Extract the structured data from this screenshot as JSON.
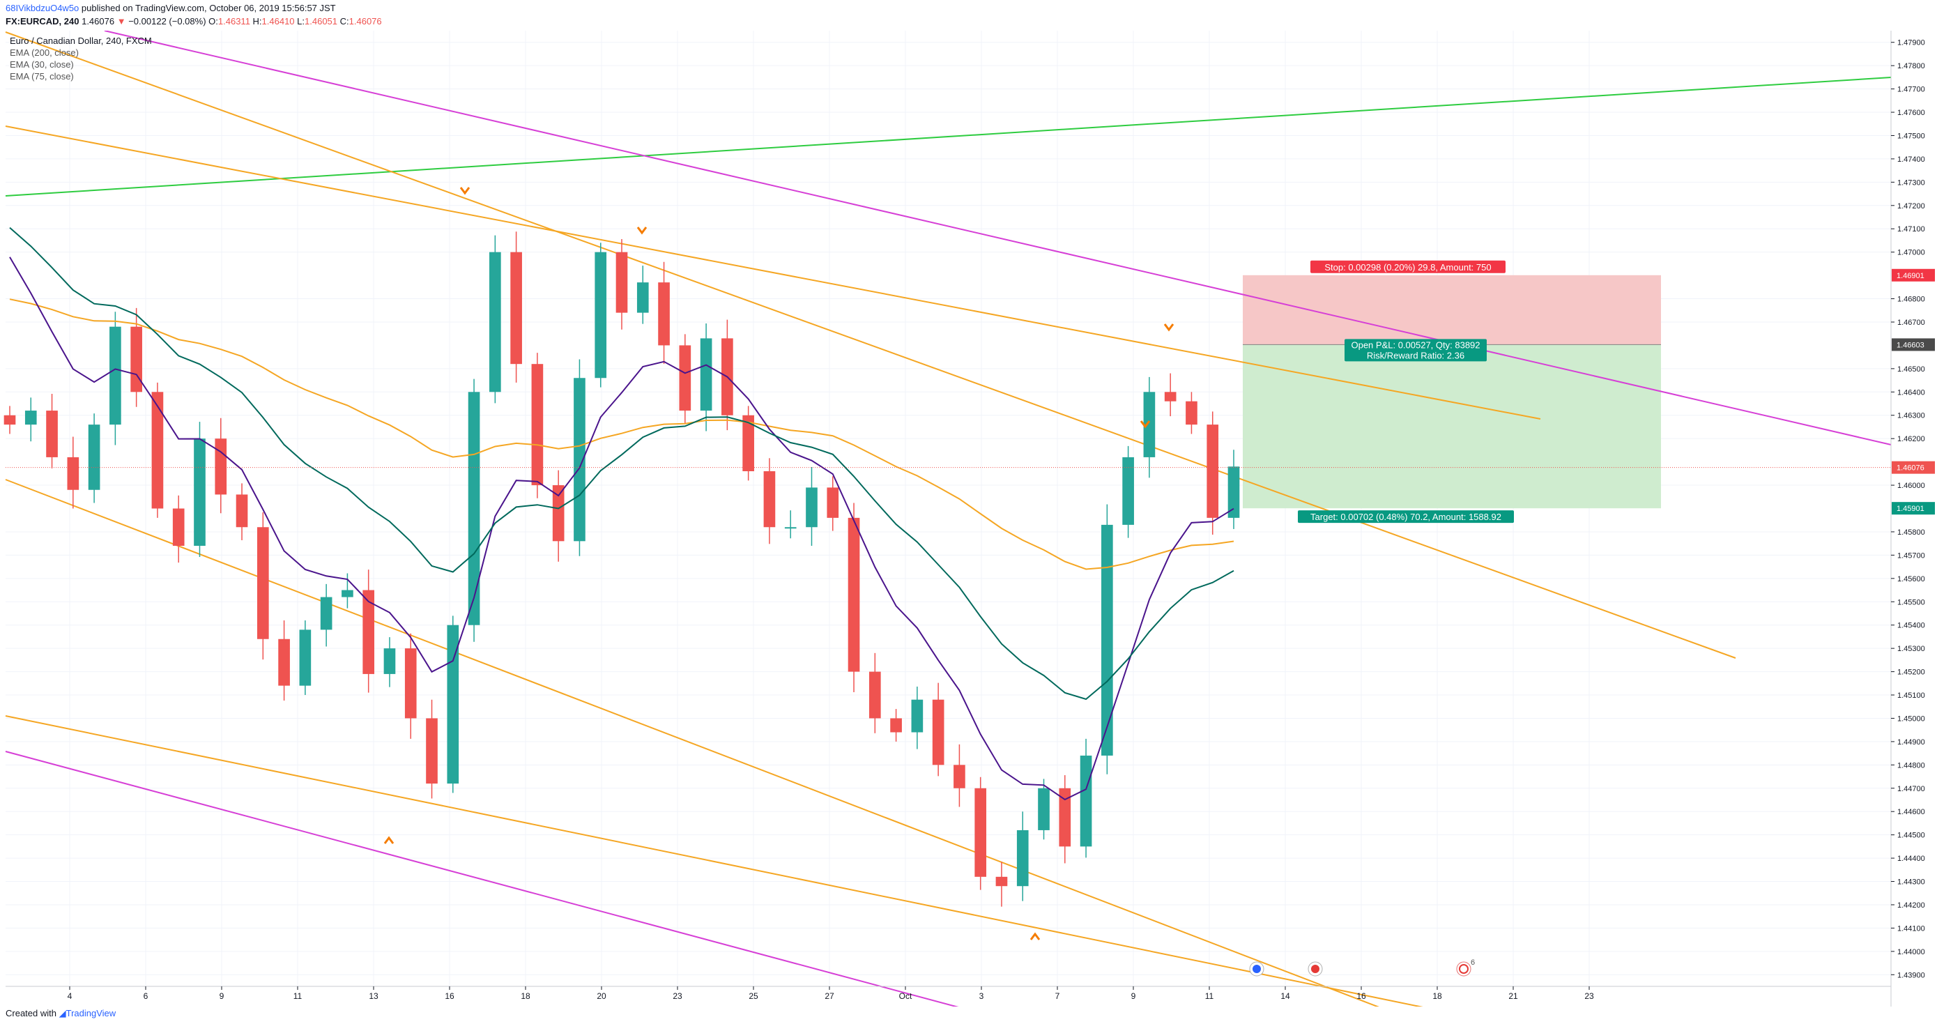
{
  "header": {
    "publisher": "68IVikbdzuO4w5o",
    "published_text": "published on TradingView.com, October 06, 2019 15:56:57 JST",
    "symbol": "FX:EURCAD, 240",
    "last": "1.46076",
    "change_arrow": "▼",
    "change": "−0.00122 (−0.08%)",
    "o_label": "O:",
    "o_value": "1.46311",
    "h_label": "H:",
    "h_value": "1.46410",
    "l_label": "L:",
    "l_value": "1.46051",
    "c_label": "C:",
    "c_value": "1.46076"
  },
  "legend": {
    "title": "Euro / Canadian Dollar, 240, FXCM",
    "ema200": "EMA (200, close)",
    "ema30": "EMA (30, close)",
    "ema75": "EMA (75, close)"
  },
  "price_axis": {
    "ticks": [
      "1.47900",
      "1.47800",
      "1.47700",
      "1.47600",
      "1.47500",
      "1.47400",
      "1.47300",
      "1.47200",
      "1.47100",
      "1.47000",
      "1.46800",
      "1.46700",
      "1.46500",
      "1.46400",
      "1.46300",
      "1.46200",
      "1.46000",
      "1.45800",
      "1.45700",
      "1.45600",
      "1.45500",
      "1.45400",
      "1.45300",
      "1.45200",
      "1.45100",
      "1.45000",
      "1.44900",
      "1.44800",
      "1.44700",
      "1.44600",
      "1.44500",
      "1.44400",
      "1.44300",
      "1.44200",
      "1.44100",
      "1.44000",
      "1.43900"
    ],
    "badges": {
      "stop": "1.46901",
      "entry": "1.46603",
      "last": "1.46076",
      "target": "1.45901"
    }
  },
  "time_axis": {
    "labels": [
      "4",
      "6",
      "9",
      "11",
      "13",
      "16",
      "18",
      "20",
      "23",
      "25",
      "27",
      "Oct",
      "3",
      "7",
      "9",
      "11",
      "14",
      "16",
      "18",
      "21",
      "23"
    ]
  },
  "position": {
    "stop_label": "Stop: 0.00298 (0.20%) 29.8, Amount: 750",
    "pnl_label": "Open P&L: 0.00527, Qty: 83892",
    "rr_label": "Risk/Reward Ratio: 2.36",
    "target_label": "Target: 0.00702 (0.48%) 70.2, Amount: 1588.92"
  },
  "events": {
    "count_badge": "6"
  },
  "footer": {
    "created_with": "Created with",
    "brand": "TradingView"
  },
  "chart_data": {
    "type": "candlestick",
    "title": "Euro / Canadian Dollar, 240, FXCM",
    "ylim": [
      1.4385,
      1.4795
    ],
    "x": [
      "4",
      "6",
      "9",
      "11",
      "13",
      "16",
      "18",
      "20",
      "23",
      "25",
      "27",
      "Oct",
      "3",
      "7",
      "9",
      "11",
      "14",
      "16",
      "18",
      "21",
      "23"
    ],
    "close_path": [
      1.4626,
      1.4632,
      1.4612,
      1.4598,
      1.4626,
      1.4668,
      1.464,
      1.459,
      1.4574,
      1.462,
      1.4596,
      1.4582,
      1.4534,
      1.4514,
      1.4538,
      1.4552,
      1.4555,
      1.4519,
      1.453,
      1.45,
      1.4472,
      1.454,
      1.464,
      1.47,
      1.4652,
      1.46,
      1.4576,
      1.4646,
      1.47,
      1.4674,
      1.4687,
      1.466,
      1.4632,
      1.4663,
      1.463,
      1.4606,
      1.4582,
      1.4582,
      1.4599,
      1.4586,
      1.452,
      1.45,
      1.4494,
      1.4508,
      1.448,
      1.447,
      1.4432,
      1.4428,
      1.4452,
      1.447,
      1.4445,
      1.4484,
      1.4583,
      1.4612,
      1.464,
      1.4636,
      1.4626,
      1.4586,
      1.4608
    ],
    "moving_averages": [
      {
        "name": "EMA (200, close)",
        "color": "#f5a623"
      },
      {
        "name": "EMA (30, close)",
        "color": "#4a148c"
      },
      {
        "name": "EMA (75, close)",
        "color": "#00695c"
      }
    ],
    "position": {
      "stop": 1.46901,
      "entry": 1.46603,
      "target": 1.45901,
      "last": 1.46076
    },
    "colors": {
      "up": "#26a69a",
      "down": "#ef5350",
      "stop_zone": "#f6c7c7",
      "target_zone": "#cfeccf"
    }
  }
}
